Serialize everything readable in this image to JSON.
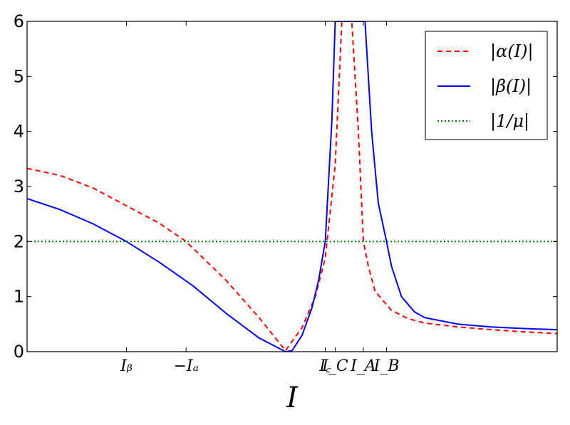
{
  "chart_data": {
    "type": "line",
    "xlabel": "I",
    "ylabel": "",
    "title": "",
    "xlim": [
      -8,
      8
    ],
    "ylim": [
      0,
      6
    ],
    "yticks": [
      "0",
      "1",
      "2",
      "3",
      "4",
      "5",
      "6"
    ],
    "xticks": [
      {
        "label": "I_b",
        "text": "Iᵦ",
        "x": -5.0
      },
      {
        "label": "-I_a",
        "text": "−Iₐ",
        "x": -3.2
      },
      {
        "label": "I_c",
        "text": "I꜀",
        "x": 1.0
      },
      {
        "label": "I_C",
        "text": "I_C",
        "x": 1.3
      },
      {
        "label": "I_A",
        "text": "I_A",
        "x": 2.15
      },
      {
        "label": "I_B",
        "text": "I_B",
        "x": 2.85
      }
    ],
    "legend_position": "top-right",
    "grid": false,
    "series": [
      {
        "name": "|α(I)|",
        "color": "#ff0000",
        "style": "dashed",
        "x": [
          -8.0,
          -7.0,
          -6.0,
          -5.0,
          -4.0,
          -3.2,
          -2.0,
          -1.0,
          -0.2,
          0.3,
          0.7,
          1.0,
          1.3,
          1.5,
          1.6,
          1.8,
          2.0,
          2.15,
          2.3,
          2.5,
          3.0,
          3.5,
          4.0,
          5.0,
          6.0,
          7.0,
          8.0
        ],
        "y": [
          3.33,
          3.2,
          2.97,
          2.65,
          2.33,
          2.0,
          1.3,
          0.62,
          0.02,
          0.44,
          1.0,
          1.7,
          3.4,
          6.0,
          6.0,
          6.0,
          4.0,
          2.0,
          1.55,
          1.1,
          0.75,
          0.6,
          0.52,
          0.45,
          0.4,
          0.36,
          0.33
        ]
      },
      {
        "name": "|β(I)|",
        "color": "#0000ff",
        "style": "solid",
        "x": [
          -8.0,
          -7.0,
          -6.0,
          -5.0,
          -4.0,
          -3.0,
          -2.0,
          -1.0,
          -0.2,
          0.0,
          0.3,
          0.6,
          0.8,
          1.0,
          1.2,
          1.3,
          1.8,
          2.2,
          2.4,
          2.6,
          2.85,
          3.0,
          3.3,
          3.7,
          4.0,
          5.0,
          6.0,
          7.0,
          8.0
        ],
        "y": [
          2.78,
          2.58,
          2.32,
          2.0,
          1.62,
          1.2,
          0.7,
          0.25,
          0.0,
          0.02,
          0.3,
          0.8,
          1.3,
          2.0,
          4.2,
          6.0,
          6.0,
          6.0,
          4.0,
          2.7,
          2.0,
          1.55,
          1.0,
          0.72,
          0.62,
          0.5,
          0.45,
          0.42,
          0.4
        ]
      },
      {
        "name": "|1/μ|",
        "color": "#008000",
        "style": "dotted",
        "x": [
          -8.0,
          8.0
        ],
        "y": [
          2.0,
          2.0
        ]
      }
    ]
  }
}
